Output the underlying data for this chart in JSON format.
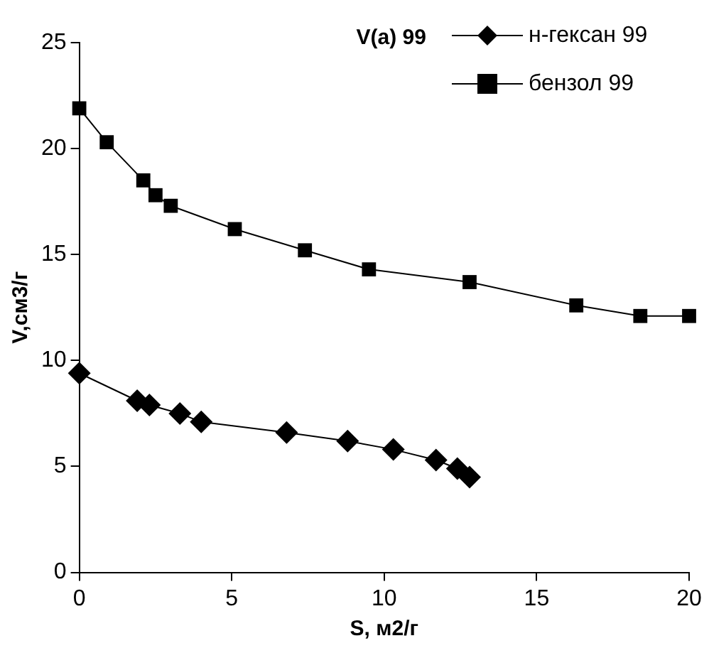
{
  "chart_data": {
    "type": "line",
    "title": "V(a) 99",
    "xlabel": "S, м2/г",
    "ylabel": "V,см3/г",
    "xlim": [
      0,
      20
    ],
    "xticks": [
      0,
      5,
      10,
      15,
      20
    ],
    "ylim": [
      0,
      25
    ],
    "yticks": [
      0,
      5,
      10,
      15,
      20,
      25
    ],
    "grid": false,
    "legend": "top right",
    "series": [
      {
        "name": "н-гексан 99",
        "color": "#000000",
        "marker": "diamond",
        "x": [
          0,
          1.9,
          2.3,
          3.3,
          4.0,
          6.8,
          8.8,
          10.3,
          11.7,
          12.4,
          12.8
        ],
        "values": [
          9.4,
          8.1,
          7.9,
          7.5,
          7.1,
          6.6,
          6.2,
          5.8,
          5.3,
          4.9,
          4.5
        ]
      },
      {
        "name": "бензол 99",
        "color": "#000000",
        "marker": "square",
        "x": [
          0,
          0.9,
          2.1,
          2.5,
          3.0,
          5.1,
          7.4,
          9.5,
          12.8,
          16.3,
          18.4,
          20
        ],
        "values": [
          21.9,
          20.3,
          18.5,
          17.8,
          17.3,
          16.2,
          15.2,
          14.3,
          13.7,
          12.6,
          12.1,
          12.1
        ]
      }
    ]
  }
}
